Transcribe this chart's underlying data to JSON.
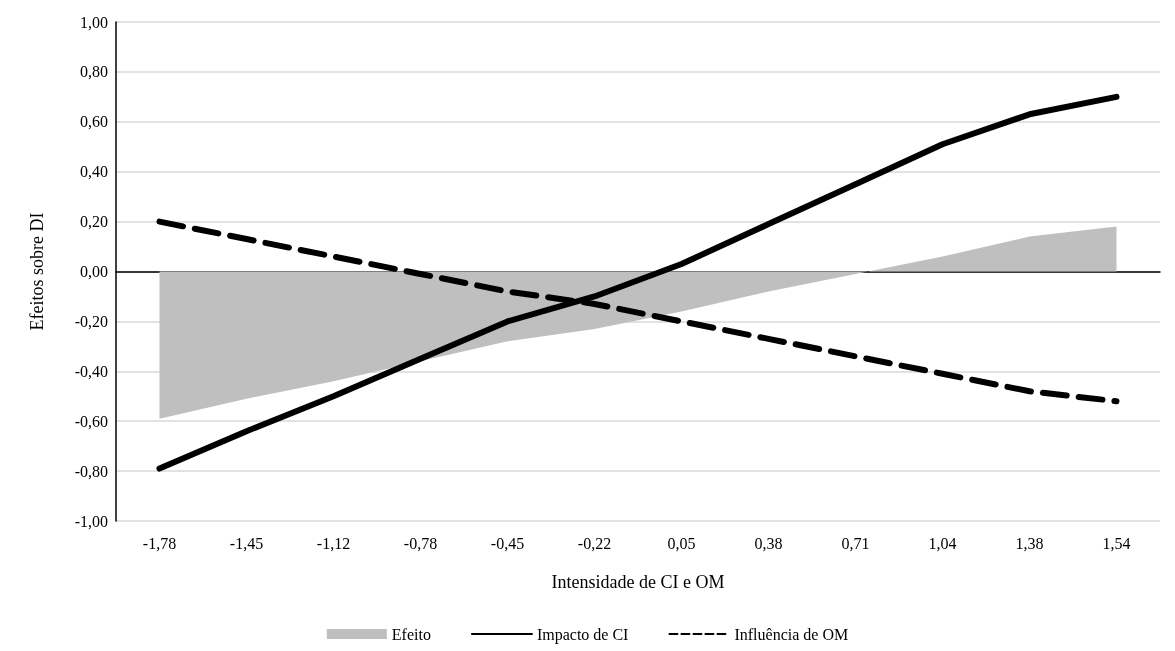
{
  "chart_data": {
    "type": "line",
    "xlabel": "Intensidade de CI e OM",
    "ylabel": "Efeitos sobre DI",
    "categories": [
      "-1,78",
      "-1,45",
      "-1,12",
      "-0,78",
      "-0,45",
      "-0,22",
      "0,05",
      "0,38",
      "0,71",
      "1,04",
      "1,38",
      "1,54"
    ],
    "series": [
      {
        "name": "Efeito",
        "type": "area",
        "color": "#bfbfbf",
        "values": [
          -0.59,
          -0.51,
          -0.44,
          -0.36,
          -0.28,
          -0.23,
          -0.16,
          -0.08,
          -0.01,
          0.06,
          0.14,
          0.18
        ]
      },
      {
        "name": "Impacto de CI",
        "type": "line",
        "color": "#000000",
        "line_style": "solid",
        "values": [
          -0.79,
          -0.64,
          -0.5,
          -0.35,
          -0.2,
          -0.1,
          0.03,
          0.19,
          0.35,
          0.51,
          0.63,
          0.7
        ]
      },
      {
        "name": "Influência de OM",
        "type": "line",
        "color": "#000000",
        "line_style": "dashed",
        "values": [
          0.2,
          0.13,
          0.06,
          -0.01,
          -0.08,
          -0.13,
          -0.2,
          -0.27,
          -0.34,
          -0.41,
          -0.48,
          -0.52
        ]
      }
    ],
    "ylim": [
      -1,
      1
    ],
    "yticks": [
      {
        "value": -1,
        "label": "-1,00"
      },
      {
        "value": -0.8,
        "label": "-0,80"
      },
      {
        "value": -0.6,
        "label": "-0,60"
      },
      {
        "value": -0.4,
        "label": "-0,40"
      },
      {
        "value": -0.2,
        "label": "-0,20"
      },
      {
        "value": 0,
        "label": "0,00"
      },
      {
        "value": 0.2,
        "label": "0,20"
      },
      {
        "value": 0.4,
        "label": "0,40"
      },
      {
        "value": 0.6,
        "label": "0,60"
      },
      {
        "value": 0.8,
        "label": "0,80"
      },
      {
        "value": 1,
        "label": "1,00"
      }
    ],
    "grid": "y",
    "legend": "bottom",
    "marker": "none"
  }
}
